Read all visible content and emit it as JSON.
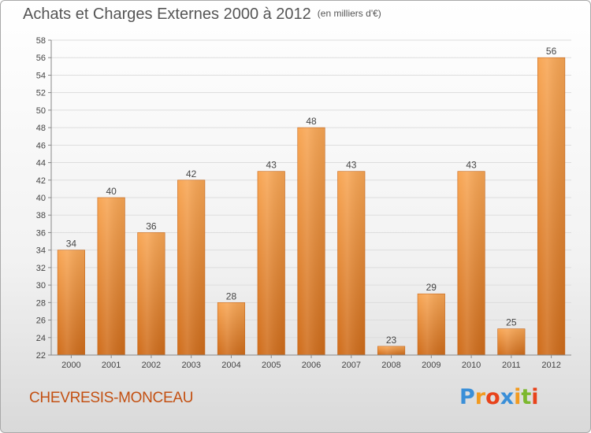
{
  "title": {
    "main": "Achats et Charges Externes 2000 à 2012",
    "unit": "(en milliers d'€)"
  },
  "footer": {
    "city": "CHEVRESIS-MONCEAU",
    "logo_letters": [
      "P",
      "r",
      "o",
      "x",
      "i",
      "t",
      "i"
    ],
    "logo_colors": [
      "#3a8fd8",
      "#f29a1f",
      "#e8431b",
      "#3a8fd8",
      "#f29a1f",
      "#7cb82f",
      "#e8431b"
    ]
  },
  "colors": {
    "bar_top": "#f8a654",
    "bar_bottom": "#cf6c1a",
    "grid": "#dddddd",
    "axis": "#888888",
    "text": "#444444"
  },
  "chart_data": {
    "type": "bar",
    "categories": [
      "2000",
      "2001",
      "2002",
      "2003",
      "2004",
      "2005",
      "2006",
      "2007",
      "2008",
      "2009",
      "2010",
      "2011",
      "2012"
    ],
    "values": [
      34,
      40,
      36,
      42,
      28,
      43,
      48,
      43,
      23,
      29,
      43,
      25,
      56
    ],
    "data_labels": [
      "34",
      "40",
      "36",
      "42",
      "28",
      "43",
      "48",
      "43",
      "23",
      "29",
      "43",
      "25",
      "56"
    ],
    "ylim": [
      22,
      58
    ],
    "yticks": [
      "22",
      "24",
      "26",
      "28",
      "30",
      "32",
      "34",
      "36",
      "38",
      "40",
      "42",
      "44",
      "46",
      "48",
      "50",
      "52",
      "54",
      "56",
      "58"
    ],
    "grid": true,
    "legend": "none",
    "xlabel": "",
    "ylabel": ""
  }
}
